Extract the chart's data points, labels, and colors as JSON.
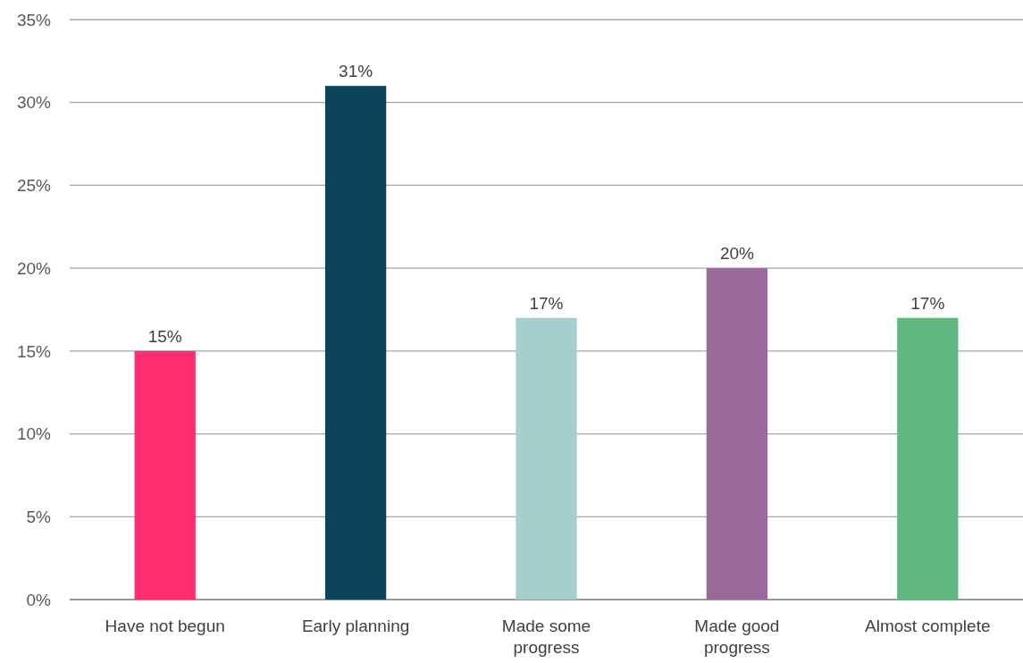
{
  "chart_data": {
    "type": "bar",
    "categories": [
      "Have not begun",
      "Early planning",
      "Made some progress",
      "Made good progress",
      "Almost complete"
    ],
    "values": [
      15,
      31,
      17,
      20,
      17
    ],
    "colors": [
      "#ff2d6f",
      "#0b445c",
      "#a3d0cd",
      "#9c6899",
      "#5db77e"
    ],
    "value_labels": [
      "15%",
      "31%",
      "17%",
      "20%",
      "17%"
    ],
    "ylim": [
      0,
      35
    ],
    "yticks": [
      {
        "value": 0,
        "label": "0%"
      },
      {
        "value": 5,
        "label": "5%"
      },
      {
        "value": 10,
        "label": "10%"
      },
      {
        "value": 15,
        "label": "15%"
      },
      {
        "value": 20,
        "label": "20%"
      },
      {
        "value": 25,
        "label": "25%"
      },
      {
        "value": 30,
        "label": "30%"
      },
      {
        "value": 35,
        "label": "35%"
      }
    ],
    "grid": "y"
  }
}
